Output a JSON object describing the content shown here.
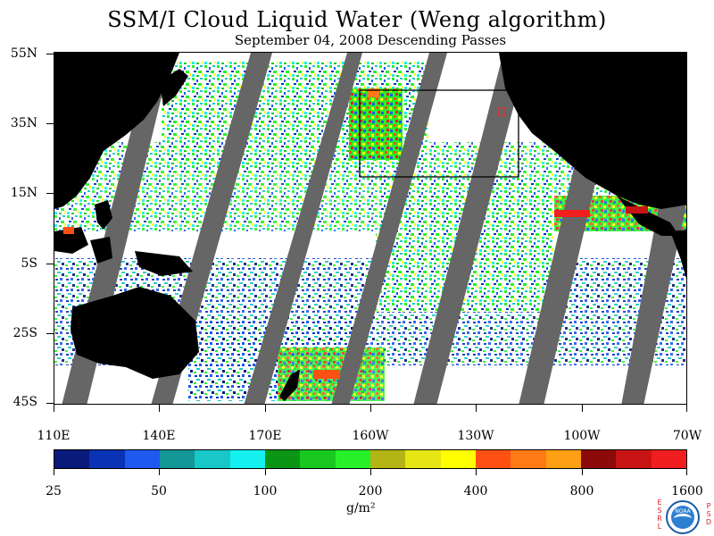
{
  "title": "SSM/I Cloud Liquid Water (Weng algorithm)",
  "subtitle": "September 04, 2008  Descending Passes",
  "lat_labels": [
    "55N",
    "35N",
    "15N",
    "5S",
    "25S",
    "45S"
  ],
  "lon_labels": [
    "110E",
    "140E",
    "170E",
    "160W",
    "130W",
    "100W",
    "70W"
  ],
  "colorbar": {
    "colors": [
      "#0a1a7a",
      "#0a32b4",
      "#1e5af0",
      "#139696",
      "#18c8c8",
      "#14f0f0",
      "#0a9614",
      "#18c81e",
      "#28f028",
      "#b4b414",
      "#e6e614",
      "#ffff00",
      "#ff5014",
      "#ff7a14",
      "#ffa014",
      "#8c0a0a",
      "#c81414",
      "#f01e1e"
    ],
    "labels": [
      "25",
      "50",
      "100",
      "200",
      "400",
      "800",
      "1600"
    ],
    "units": "g/m²"
  },
  "logo": {
    "text": "NOAA",
    "left_letters": [
      "E",
      "S",
      "R",
      "L"
    ],
    "right_letters": [
      "P",
      "S",
      "D"
    ]
  }
}
